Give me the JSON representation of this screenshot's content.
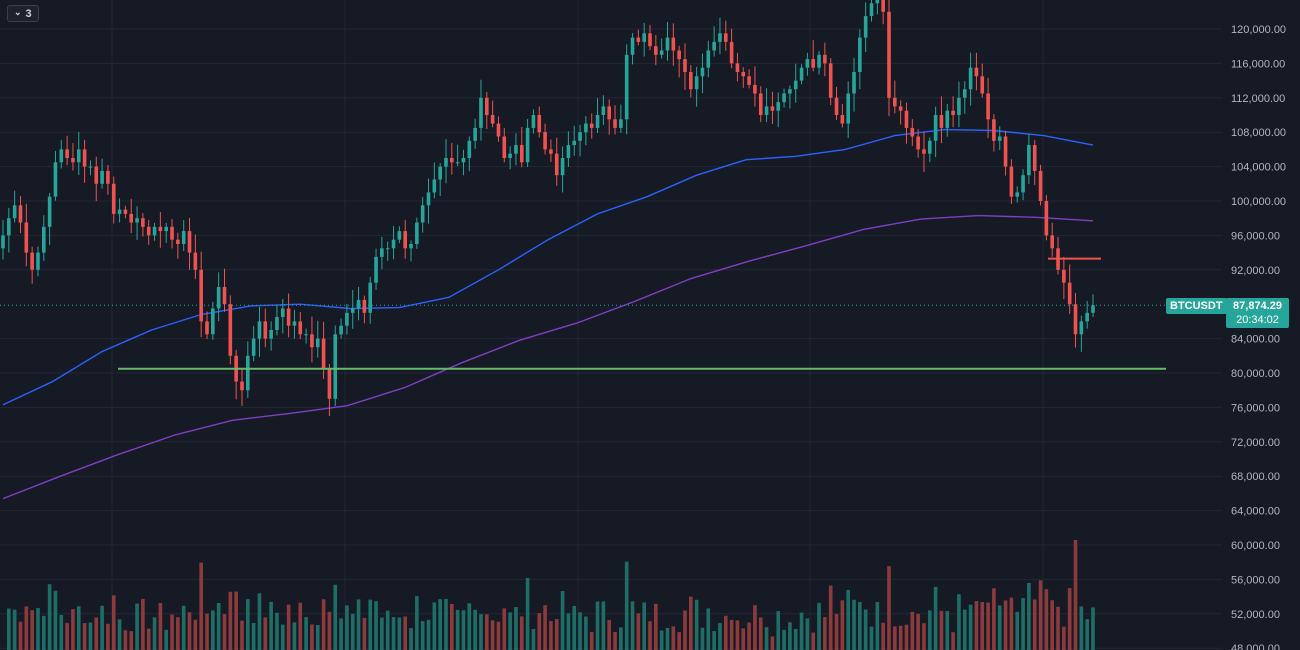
{
  "toolbar": {
    "collapse_label": "3",
    "collapse_icon": "chevron-down-icon"
  },
  "price_axis": {
    "ticks": [
      "120,000.00",
      "116,000.00",
      "112,000.00",
      "108,000.00",
      "104,000.00",
      "100,000.00",
      "96,000.00",
      "92,000.00",
      "84,000.00",
      "80,000.00",
      "76,000.00",
      "72,000.00",
      "68,000.00",
      "64,000.00",
      "60,000.00",
      "56,000.00",
      "52,000.00",
      "48,000.00"
    ]
  },
  "last_price": {
    "symbol": "BTCUSDT",
    "value": "87,874.29",
    "countdown": "20:34:02",
    "color": "#26a69a"
  },
  "colors": {
    "background": "#161a25",
    "grid": "#232735",
    "up": "#26a69a",
    "down": "#ef5350",
    "up_volume": "#1e6e68",
    "down_volume": "#8c3a3c",
    "ma_fast": "#2962ff",
    "ma_slow": "#7e3fc2",
    "support_line": "#66bb6a",
    "resistance_mark": "#ef5350"
  },
  "chart_data": {
    "type": "candlestick",
    "symbol": "BTCUSDT",
    "y_range": [
      47000,
      125000
    ],
    "candles": {
      "description": "daily OHLC, oldest to newest",
      "close": [
        96000,
        98000,
        99500,
        97500,
        94000,
        92000,
        94000,
        97000,
        100500,
        104500,
        106000,
        105000,
        104500,
        106000,
        104000,
        104000,
        102000,
        103500,
        102000,
        98500,
        99000,
        98500,
        97500,
        98000,
        97000,
        96000,
        97000,
        96500,
        97000,
        95500,
        95000,
        96500,
        94000,
        92000,
        86000,
        84500,
        87500,
        90000,
        88000,
        82000,
        79000,
        78000,
        82000,
        84000,
        86000,
        84000,
        85000,
        86500,
        87500,
        85500,
        86000,
        84500,
        84500,
        83000,
        84000,
        80500,
        77000,
        84500,
        85500,
        87000,
        87500,
        88500,
        87000,
        90500,
        93500,
        94500,
        94500,
        95500,
        96500,
        94500,
        95000,
        97500,
        99500,
        101000,
        102500,
        104000,
        105000,
        104500,
        104500,
        105000,
        107000,
        108500,
        112000,
        110000,
        109000,
        107500,
        105000,
        105500,
        106500,
        104500,
        108500,
        110000,
        108000,
        106000,
        105500,
        103000,
        105000,
        106500,
        107000,
        108000,
        109000,
        108500,
        110000,
        111000,
        109500,
        108500,
        109500,
        117000,
        119000,
        118500,
        119500,
        118000,
        117000,
        117500,
        119000,
        117500,
        116500,
        115000,
        113000,
        114500,
        115500,
        117500,
        118500,
        119500,
        118500,
        116000,
        115000,
        114500,
        113500,
        112500,
        110000,
        111000,
        110500,
        111500,
        112500,
        113000,
        114000,
        115500,
        116500,
        115500,
        117000,
        116000,
        112000,
        110000,
        109000,
        112500,
        115000,
        119000,
        121500,
        123000,
        124000,
        122000,
        112000,
        111000,
        110500,
        108500,
        107500,
        106000,
        105500,
        107000,
        110000,
        108500,
        110500,
        110000,
        112000,
        113000,
        115500,
        114500,
        112500,
        109500,
        107000,
        107500,
        104000,
        100500,
        101000,
        103000,
        106500,
        103500,
        100000,
        96000,
        94500,
        92000,
        90500,
        88000,
        84500,
        86000,
        87000,
        87874.29
      ]
    },
    "moving_averages": [
      {
        "label_shown": false,
        "color": "#2962ff",
        "approx_values": [
          76300,
          79000,
          82500,
          85000,
          86800,
          87800,
          88000,
          87500,
          87600,
          88800,
          92000,
          95500,
          98500,
          100500,
          103000,
          104800,
          105200,
          106000,
          107600,
          108300,
          108200,
          107600,
          106500
        ]
      },
      {
        "label_shown": false,
        "color": "#7e3fc2",
        "approx_values": [
          65400,
          68000,
          70500,
          72800,
          74500,
          75300,
          76200,
          78300,
          81200,
          83800,
          85800,
          88300,
          91000,
          93000,
          94800,
          96700,
          97900,
          98300,
          98100,
          97700
        ]
      }
    ],
    "horizontal_lines": [
      {
        "price": 80500,
        "color": "#66bb6a"
      },
      {
        "price": 93300,
        "color": "#ef5350"
      }
    ],
    "volume": "histogram bars along the bottom, colored by candle direction; largest spikes near the early lows and the final sell-off",
    "last_price": 87874.29
  }
}
